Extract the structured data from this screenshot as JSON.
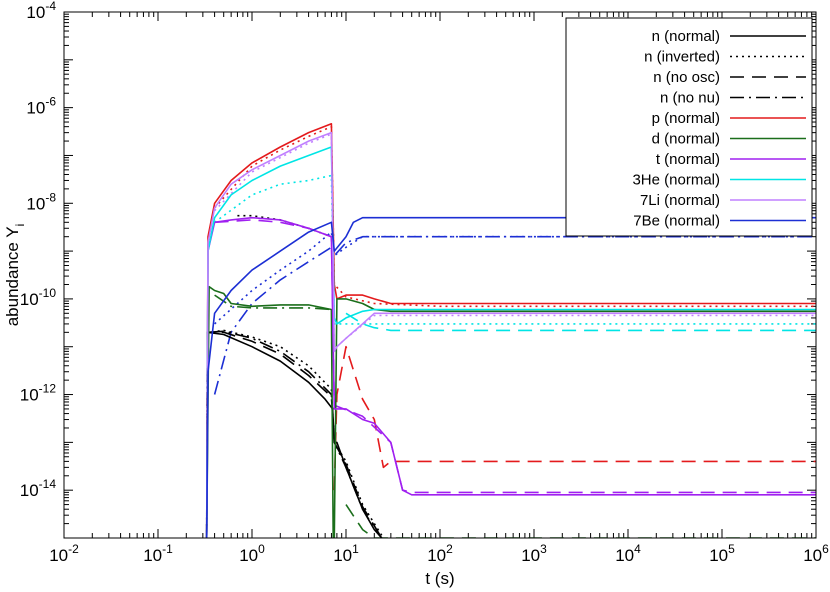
{
  "chart_data": {
    "type": "line",
    "xlabel": "t (s)",
    "ylabel": "abundance Y",
    "ylabel_sub": "i",
    "xscale": "log",
    "yscale": "log",
    "xlim": [
      0.01,
      1000000
    ],
    "ylim": [
      1e-15,
      0.0001
    ],
    "grid": false,
    "legend_position": "top-right",
    "x_ticks": [
      {
        "base": "10",
        "exp": "-2",
        "value": 0.01
      },
      {
        "base": "10",
        "exp": "-1",
        "value": 0.1
      },
      {
        "base": "10",
        "exp": "0",
        "value": 1
      },
      {
        "base": "10",
        "exp": "1",
        "value": 10
      },
      {
        "base": "10",
        "exp": "2",
        "value": 100
      },
      {
        "base": "10",
        "exp": "3",
        "value": 1000
      },
      {
        "base": "10",
        "exp": "4",
        "value": 10000
      },
      {
        "base": "10",
        "exp": "5",
        "value": 100000
      },
      {
        "base": "10",
        "exp": "6",
        "value": 1000000
      }
    ],
    "y_ticks": [
      {
        "base": "10",
        "exp": "-4",
        "value": 0.0001
      },
      {
        "base": "10",
        "exp": "-6",
        "value": 1e-06
      },
      {
        "base": "10",
        "exp": "-8",
        "value": 1e-08
      },
      {
        "base": "10",
        "exp": "-10",
        "value": 1e-10
      },
      {
        "base": "10",
        "exp": "-12",
        "value": 1e-12
      },
      {
        "base": "10",
        "exp": "-14",
        "value": 1e-14
      }
    ],
    "series": [
      {
        "name": "n (normal)",
        "color": "#000000",
        "dash": "solid",
        "points": [
          [
            0.33,
            1e-15
          ],
          [
            0.335,
            2e-11
          ],
          [
            0.5,
            1.8e-11
          ],
          [
            1,
            1e-11
          ],
          [
            2,
            5e-12
          ],
          [
            4,
            1.8e-12
          ],
          [
            6,
            8e-13
          ],
          [
            7.2,
            5e-13
          ],
          [
            7.5,
            1e-13
          ],
          [
            8,
            1e-13
          ],
          [
            10,
            3e-14
          ],
          [
            15,
            4e-15
          ],
          [
            20,
            1.5e-15
          ],
          [
            24,
            1e-15
          ]
        ]
      },
      {
        "name": "n (inverted)",
        "color": "#000000",
        "dash": "dot",
        "points": [
          [
            0.33,
            1e-15
          ],
          [
            0.335,
            2e-11
          ],
          [
            0.5,
            2.2e-11
          ],
          [
            1,
            1.6e-11
          ],
          [
            2,
            1e-11
          ],
          [
            4,
            4e-12
          ],
          [
            7,
            1.3e-12
          ],
          [
            7.5,
            1e-13
          ],
          [
            10,
            4e-14
          ],
          [
            15,
            5e-15
          ],
          [
            20,
            2e-15
          ],
          [
            25,
            1e-15
          ]
        ]
      },
      {
        "name": "n (no osc)",
        "color": "#000000",
        "dash": "dash",
        "points": [
          [
            0.33,
            1e-15
          ],
          [
            0.335,
            2e-11
          ],
          [
            0.5,
            2e-11
          ],
          [
            1,
            1.3e-11
          ],
          [
            2,
            7e-12
          ],
          [
            4,
            2.5e-12
          ],
          [
            7,
            9e-13
          ],
          [
            7.5,
            1e-13
          ],
          [
            10,
            3.5e-14
          ],
          [
            15,
            4.5e-15
          ],
          [
            20,
            1.8e-15
          ],
          [
            24,
            1e-15
          ]
        ]
      },
      {
        "name": "n (no nu)",
        "color": "#000000",
        "dash": "dashdot",
        "points": [
          [
            0.33,
            1e-15
          ],
          [
            0.335,
            2e-11
          ],
          [
            0.5,
            2.1e-11
          ],
          [
            1,
            1.5e-11
          ],
          [
            2,
            8e-12
          ],
          [
            4,
            3e-12
          ],
          [
            7,
            1e-12
          ],
          [
            7.5,
            1e-13
          ],
          [
            10,
            3e-14
          ],
          [
            15,
            4e-15
          ],
          [
            20,
            1.6e-15
          ],
          [
            24,
            1e-15
          ]
        ]
      },
      {
        "name": "p (normal)",
        "color": "#e41a1c",
        "dash": "solid",
        "points": [
          [
            0.33,
            1e-15
          ],
          [
            0.34,
            2e-09
          ],
          [
            0.4,
            1e-08
          ],
          [
            0.6,
            3e-08
          ],
          [
            1,
            7e-08
          ],
          [
            2,
            1.5e-07
          ],
          [
            4,
            3e-07
          ],
          [
            7,
            4.6e-07
          ],
          [
            7.5,
            2e-10
          ],
          [
            8,
            1e-10
          ],
          [
            10,
            1.2e-10
          ],
          [
            15,
            1.2e-10
          ],
          [
            20,
            1e-10
          ],
          [
            30,
            8e-11
          ],
          [
            100,
            8e-11
          ],
          [
            1000000,
            8e-11
          ]
        ]
      },
      {
        "name": "d (normal)",
        "color": "#1b6e1b",
        "dash": "solid",
        "points": [
          [
            0.33,
            1e-15
          ],
          [
            0.35,
            1.8e-10
          ],
          [
            0.4,
            1.5e-10
          ],
          [
            0.5,
            1.3e-10
          ],
          [
            0.6,
            8e-11
          ],
          [
            1,
            7e-11
          ],
          [
            2,
            7.5e-11
          ],
          [
            4,
            7.5e-11
          ],
          [
            7,
            6e-11
          ],
          [
            7.3,
            1e-15
          ],
          [
            7.5,
            1e-15
          ],
          [
            8,
            1e-10
          ],
          [
            10,
            1e-10
          ],
          [
            15,
            8e-11
          ],
          [
            20,
            6e-11
          ],
          [
            30,
            5.5e-11
          ],
          [
            100,
            5.5e-11
          ],
          [
            1000000,
            5.5e-11
          ]
        ]
      },
      {
        "name": "t (normal)",
        "color": "#a020f0",
        "dash": "solid",
        "points": [
          [
            0.33,
            1e-15
          ],
          [
            0.34,
            1e-09
          ],
          [
            0.4,
            4e-09
          ],
          [
            0.6,
            4.5e-09
          ],
          [
            1,
            5e-09
          ],
          [
            2,
            4.5e-09
          ],
          [
            4,
            3e-09
          ],
          [
            7,
            2e-09
          ],
          [
            7.5,
            5e-13
          ],
          [
            10,
            5e-13
          ],
          [
            15,
            3e-13
          ],
          [
            20,
            2.5e-13
          ],
          [
            30,
            1e-13
          ],
          [
            40,
            1e-14
          ],
          [
            50,
            8e-15
          ],
          [
            1000000,
            8e-15
          ]
        ]
      },
      {
        "name": "3He (normal)",
        "color": "#00e5e5",
        "dash": "solid",
        "points": [
          [
            0.33,
            1e-15
          ],
          [
            0.34,
            1e-09
          ],
          [
            0.4,
            5e-09
          ],
          [
            0.6,
            1.5e-08
          ],
          [
            1,
            3e-08
          ],
          [
            2,
            6e-08
          ],
          [
            4,
            1e-07
          ],
          [
            7,
            1.5e-07
          ],
          [
            7.5,
            4e-11
          ],
          [
            8,
            3e-11
          ],
          [
            10,
            4e-11
          ],
          [
            15,
            5.5e-11
          ],
          [
            20,
            6e-11
          ],
          [
            30,
            6e-11
          ],
          [
            1000000,
            6e-11
          ]
        ]
      },
      {
        "name": "7Li (normal)",
        "color": "#c080ff",
        "dash": "solid",
        "points": [
          [
            0.33,
            1e-15
          ],
          [
            0.34,
            1.5e-09
          ],
          [
            0.4,
            8e-09
          ],
          [
            0.6,
            2.5e-08
          ],
          [
            1,
            5e-08
          ],
          [
            2,
            1e-07
          ],
          [
            4,
            2e-07
          ],
          [
            7,
            3e-07
          ],
          [
            7.5,
            8e-12
          ],
          [
            8,
            1e-11
          ],
          [
            10,
            1.5e-11
          ],
          [
            15,
            3e-11
          ],
          [
            20,
            5e-11
          ],
          [
            30,
            5e-11
          ],
          [
            1000000,
            5e-11
          ]
        ]
      },
      {
        "name": "7Be (normal)",
        "color": "#1c2fd4",
        "dash": "solid",
        "points": [
          [
            0.33,
            1e-15
          ],
          [
            0.34,
            3e-12
          ],
          [
            0.4,
            5e-11
          ],
          [
            0.6,
            1.5e-10
          ],
          [
            1,
            4e-10
          ],
          [
            2,
            1e-09
          ],
          [
            4,
            2.5e-09
          ],
          [
            7,
            4e-09
          ],
          [
            7.5,
            1e-09
          ],
          [
            10,
            2e-09
          ],
          [
            12,
            4e-09
          ],
          [
            15,
            5e-09
          ],
          [
            30,
            5e-09
          ],
          [
            1000000,
            5e-09
          ]
        ]
      }
    ],
    "extra_curves": [
      {
        "color": "#000000",
        "dash": "dot",
        "points": [
          [
            0.7,
            5.5e-09
          ],
          [
            1,
            5.5e-09
          ],
          [
            2,
            4.5e-09
          ],
          [
            4,
            3e-09
          ],
          [
            7,
            2e-09
          ]
        ]
      },
      {
        "color": "#e41a1c",
        "dash": "dot",
        "points": [
          [
            0.4,
            8e-09
          ],
          [
            1,
            6e-08
          ],
          [
            2,
            1.3e-07
          ],
          [
            4,
            2.5e-07
          ],
          [
            7,
            4e-07
          ],
          [
            7.5,
            2e-10
          ],
          [
            10,
            1.1e-10
          ],
          [
            20,
            8e-11
          ],
          [
            100,
            7e-11
          ],
          [
            1000000,
            7e-11
          ]
        ]
      },
      {
        "color": "#e41a1c",
        "dash": "dash",
        "points": [
          [
            7.5,
            1e-14
          ],
          [
            8,
            1e-12
          ],
          [
            10,
            1e-11
          ],
          [
            15,
            8e-13
          ],
          [
            20,
            3e-13
          ],
          [
            25,
            3e-14
          ],
          [
            30,
            4e-14
          ],
          [
            1000000,
            4e-14
          ]
        ]
      },
      {
        "color": "#1b6e1b",
        "dash": "dashdot",
        "points": [
          [
            0.4,
            1.2e-10
          ],
          [
            0.6,
            7e-11
          ],
          [
            1,
            6.5e-11
          ],
          [
            4,
            6.5e-11
          ],
          [
            7,
            6e-11
          ]
        ]
      },
      {
        "color": "#1b6e1b",
        "dash": "dash",
        "points": [
          [
            10,
            5e-15
          ],
          [
            15,
            1.5e-15
          ],
          [
            20,
            1e-15
          ],
          [
            1000000,
            1e-15
          ]
        ]
      },
      {
        "color": "#a020f0",
        "dash": "dash",
        "points": [
          [
            0.4,
            4e-09
          ],
          [
            1,
            4.5e-09
          ],
          [
            2,
            4e-09
          ],
          [
            4,
            3e-09
          ],
          [
            7,
            2e-09
          ],
          [
            7.5,
            6e-13
          ],
          [
            15,
            3.5e-13
          ],
          [
            30,
            1e-13
          ],
          [
            40,
            1e-14
          ],
          [
            50,
            9e-15
          ],
          [
            1000000,
            9e-15
          ]
        ]
      },
      {
        "color": "#00e5e5",
        "dash": "dot",
        "points": [
          [
            0.4,
            4e-09
          ],
          [
            1,
            1.5e-08
          ],
          [
            2,
            2.5e-08
          ],
          [
            4,
            3e-08
          ],
          [
            7,
            3.8e-08
          ],
          [
            7.5,
            3e-11
          ],
          [
            10,
            3e-11
          ],
          [
            20,
            3e-11
          ],
          [
            1000000,
            3e-11
          ]
        ]
      },
      {
        "color": "#00e5e5",
        "dash": "dash",
        "points": [
          [
            10,
            5e-11
          ],
          [
            15,
            3e-11
          ],
          [
            20,
            2.5e-11
          ],
          [
            30,
            2.2e-11
          ],
          [
            1000000,
            2.2e-11
          ]
        ]
      },
      {
        "color": "#c080ff",
        "dash": "dot",
        "points": [
          [
            0.4,
            7e-09
          ],
          [
            1,
            4.5e-08
          ],
          [
            2,
            9e-08
          ],
          [
            4,
            1.8e-07
          ],
          [
            7,
            2.8e-07
          ],
          [
            7.5,
            9e-12
          ],
          [
            10,
            1.5e-11
          ],
          [
            20,
            4.5e-11
          ],
          [
            1000000,
            4.5e-11
          ]
        ]
      },
      {
        "color": "#1c2fd4",
        "dash": "dot",
        "points": [
          [
            0.4,
            3e-11
          ],
          [
            1,
            1.5e-10
          ],
          [
            2,
            4e-10
          ],
          [
            4,
            1e-09
          ],
          [
            7,
            2.5e-09
          ],
          [
            7.5,
            8e-10
          ],
          [
            10,
            1.2e-09
          ],
          [
            15,
            2e-09
          ],
          [
            30,
            2e-09
          ],
          [
            1000000,
            2e-09
          ]
        ]
      },
      {
        "color": "#1c2fd4",
        "dash": "dashdot",
        "points": [
          [
            0.4,
            1e-12
          ],
          [
            0.6,
            2e-11
          ],
          [
            1,
            8e-11
          ],
          [
            2,
            2.5e-10
          ],
          [
            4,
            6e-10
          ],
          [
            7,
            1.2e-09
          ],
          [
            7.5,
            8e-10
          ],
          [
            10,
            1.5e-09
          ],
          [
            15,
            2e-09
          ],
          [
            30,
            2e-09
          ],
          [
            1000000,
            2e-09
          ]
        ]
      }
    ]
  }
}
